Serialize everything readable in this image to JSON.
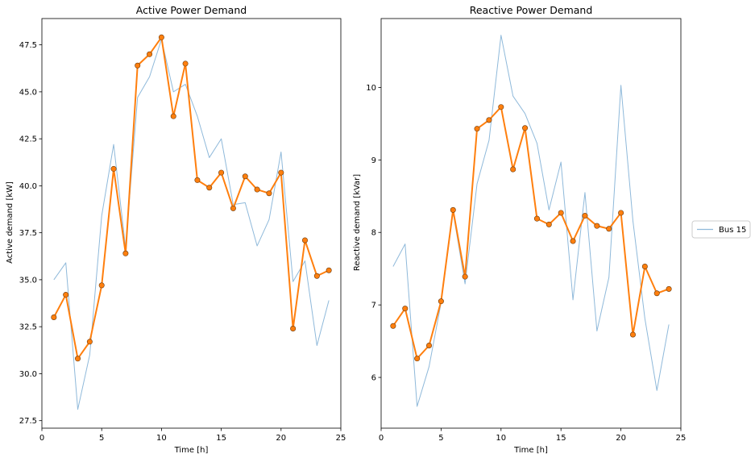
{
  "chart_data": [
    {
      "type": "line",
      "title": "Active Power Demand",
      "xlabel": "Time [h]",
      "ylabel": "Active demand [kW]",
      "xlim": [
        0,
        25
      ],
      "ylim": [
        27.1,
        48.9
      ],
      "xticks": [
        0,
        5,
        10,
        15,
        20,
        25
      ],
      "yticks": [
        27.5,
        30.0,
        32.5,
        35.0,
        37.5,
        40.0,
        42.5,
        45.0,
        47.5
      ],
      "grid": false,
      "x": [
        1,
        2,
        3,
        4,
        5,
        6,
        7,
        8,
        9,
        10,
        11,
        12,
        13,
        14,
        15,
        16,
        17,
        18,
        19,
        20,
        21,
        22,
        23,
        24
      ],
      "series": [
        {
          "name": "Bus 15",
          "color": "#8fb9da",
          "values": [
            35.0,
            35.9,
            28.1,
            31.0,
            38.4,
            42.2,
            36.7,
            44.7,
            45.8,
            47.8,
            45.0,
            45.4,
            43.7,
            41.5,
            42.5,
            39.0,
            39.1,
            36.8,
            38.2,
            41.8,
            34.9,
            36.0,
            31.5,
            33.9
          ]
        },
        {
          "color": "#ff7f0e",
          "marker": "circle",
          "values": [
            33.0,
            34.2,
            30.8,
            31.7,
            34.7,
            40.9,
            36.4,
            46.4,
            47.0,
            47.9,
            43.7,
            46.5,
            40.3,
            39.9,
            40.7,
            38.8,
            40.5,
            39.8,
            39.6,
            40.7,
            32.4,
            37.1,
            35.2,
            35.5
          ]
        }
      ]
    },
    {
      "type": "line",
      "title": "Reactive Power Demand",
      "xlabel": "Time [h]",
      "ylabel": "Reactive demand [kVar]",
      "xlim": [
        0,
        25
      ],
      "ylim": [
        5.3,
        10.95
      ],
      "xticks": [
        0,
        5,
        10,
        15,
        20,
        25
      ],
      "yticks": [
        6,
        7,
        8,
        9,
        10
      ],
      "grid": false,
      "x": [
        1,
        2,
        3,
        4,
        5,
        6,
        7,
        8,
        9,
        10,
        11,
        12,
        13,
        14,
        15,
        16,
        17,
        18,
        19,
        20,
        21,
        22,
        23,
        24
      ],
      "series": [
        {
          "name": "Bus 15",
          "color": "#8fb9da",
          "values": [
            7.53,
            7.84,
            5.6,
            6.15,
            7.03,
            8.28,
            7.29,
            8.67,
            9.27,
            10.72,
            9.88,
            9.64,
            9.23,
            8.31,
            8.97,
            7.07,
            8.55,
            6.64,
            7.38,
            10.03,
            8.16,
            6.81,
            5.82,
            6.73
          ]
        },
        {
          "color": "#ff7f0e",
          "marker": "circle",
          "values": [
            6.71,
            6.95,
            6.26,
            6.44,
            7.05,
            8.31,
            7.39,
            9.43,
            9.55,
            9.73,
            8.87,
            9.44,
            8.19,
            8.11,
            8.27,
            7.88,
            8.23,
            8.09,
            8.05,
            8.27,
            6.59,
            7.53,
            7.16,
            7.22
          ]
        }
      ]
    }
  ],
  "legend": {
    "placement": "right",
    "entries": [
      {
        "label": "Bus 15",
        "color": "#8fb9da"
      }
    ]
  }
}
